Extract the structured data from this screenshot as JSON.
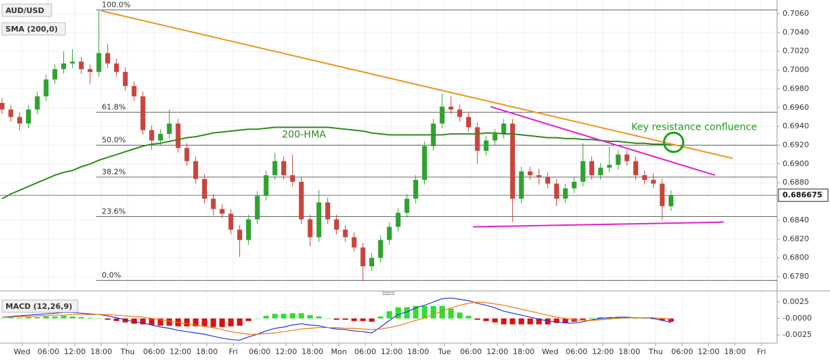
{
  "chart_data": {
    "type": "candlestick",
    "symbol": "AUD/USD",
    "indicator_label": "SMA (200,0)",
    "xlim": [
      -0.234,
      88.05
    ],
    "ylim": [
      0.67676,
      0.70746
    ],
    "grid": true,
    "yticks": [
      {
        "value": 0.706,
        "label": "0.7060"
      },
      {
        "value": 0.704,
        "label": "0.7040"
      },
      {
        "value": 0.702,
        "label": "0.7020"
      },
      {
        "value": 0.7,
        "label": "0.7000"
      },
      {
        "value": 0.698,
        "label": "0.6980"
      },
      {
        "value": 0.696,
        "label": "0.6960"
      },
      {
        "value": 0.694,
        "label": "0.6940"
      },
      {
        "value": 0.692,
        "label": "0.6920"
      },
      {
        "value": 0.69,
        "label": "0.6900"
      },
      {
        "value": 0.688,
        "label": "0.6880"
      },
      {
        "value": 0.684,
        "label": "0.6840"
      },
      {
        "value": 0.682,
        "label": "0.6820"
      },
      {
        "value": 0.68,
        "label": "0.6800"
      },
      {
        "value": 0.678,
        "label": "0.6780"
      }
    ],
    "last_price": 0.686675,
    "x_labels": [
      "Wed",
      "06:00",
      "12:00",
      "18:00",
      "Thu",
      "06:00",
      "12:00",
      "18:00",
      "Fri",
      "06:00",
      "12:00",
      "18:00",
      "Mon",
      "06:00",
      "12:00",
      "18:00",
      "Tue",
      "06:00",
      "12:00",
      "18:00",
      "Wed",
      "06:00",
      "12:00",
      "18:00",
      "Thu",
      "06:00",
      "12:00",
      "18:00",
      "Fri"
    ],
    "up_color": "#2ea32e",
    "down_color": "#c8453c",
    "candles": {
      "open": [
        0.6965,
        0.6958,
        0.695,
        0.6943,
        0.6958,
        0.6972,
        0.699,
        0.7001,
        0.7007,
        0.7009,
        0.7001,
        0.6998,
        0.7018,
        0.7007,
        0.6998,
        0.6983,
        0.6972,
        0.6936,
        0.6925,
        0.6932,
        0.6943,
        0.6917,
        0.6903,
        0.6884,
        0.6863,
        0.6852,
        0.6847,
        0.683,
        0.6819,
        0.6841,
        0.6866,
        0.6888,
        0.6903,
        0.6888,
        0.6881,
        0.6841,
        0.6822,
        0.6859,
        0.6841,
        0.683,
        0.6822,
        0.6811,
        0.6791,
        0.68,
        0.6819,
        0.6833,
        0.6848,
        0.6863,
        0.6883,
        0.6919,
        0.6943,
        0.6961,
        0.6958,
        0.695,
        0.6939,
        0.6914,
        0.6925,
        0.6932,
        0.6943,
        0.6863,
        0.6892,
        0.6888,
        0.6886,
        0.6879,
        0.6863,
        0.6874,
        0.6881,
        0.6903,
        0.6888,
        0.6896,
        0.6899,
        0.691,
        0.6903,
        0.6888,
        0.6883,
        0.6879,
        0.6855
      ],
      "high": [
        0.697,
        0.6963,
        0.6955,
        0.6963,
        0.6977,
        0.6995,
        0.7006,
        0.702,
        0.7022,
        0.7014,
        0.7006,
        0.7064,
        0.7028,
        0.7012,
        0.7003,
        0.6988,
        0.6977,
        0.6941,
        0.6937,
        0.6958,
        0.6948,
        0.6922,
        0.6908,
        0.6889,
        0.6868,
        0.6857,
        0.6852,
        0.6835,
        0.6846,
        0.6871,
        0.6893,
        0.6912,
        0.6908,
        0.691,
        0.6886,
        0.6846,
        0.6872,
        0.6864,
        0.6846,
        0.6835,
        0.6827,
        0.6816,
        0.6805,
        0.6824,
        0.6838,
        0.6853,
        0.6868,
        0.6888,
        0.6924,
        0.6948,
        0.6975,
        0.6972,
        0.6963,
        0.6955,
        0.6944,
        0.693,
        0.6937,
        0.6948,
        0.6948,
        0.6897,
        0.6897,
        0.6895,
        0.6891,
        0.6884,
        0.6879,
        0.6886,
        0.6922,
        0.6908,
        0.6901,
        0.6918,
        0.6915,
        0.6915,
        0.6908,
        0.6893,
        0.689,
        0.6884,
        0.6872
      ],
      "low": [
        0.6953,
        0.6945,
        0.6936,
        0.6938,
        0.6953,
        0.6967,
        0.6985,
        0.6996,
        0.7002,
        0.6996,
        0.6985,
        0.6993,
        0.7002,
        0.6993,
        0.6978,
        0.6967,
        0.6931,
        0.6915,
        0.692,
        0.6927,
        0.6912,
        0.6898,
        0.6879,
        0.6858,
        0.6845,
        0.6842,
        0.6825,
        0.6801,
        0.6814,
        0.6836,
        0.6861,
        0.6883,
        0.6883,
        0.6876,
        0.6836,
        0.6812,
        0.6817,
        0.6836,
        0.6825,
        0.6817,
        0.6806,
        0.6775,
        0.6786,
        0.6795,
        0.6814,
        0.6828,
        0.6843,
        0.6858,
        0.6878,
        0.6914,
        0.6938,
        0.6953,
        0.6945,
        0.6934,
        0.69,
        0.6909,
        0.692,
        0.6927,
        0.6838,
        0.6858,
        0.6883,
        0.6878,
        0.6874,
        0.6855,
        0.6858,
        0.6869,
        0.6876,
        0.6883,
        0.6883,
        0.6891,
        0.6894,
        0.6898,
        0.6883,
        0.6878,
        0.6874,
        0.684,
        0.685
      ],
      "close": [
        0.6958,
        0.695,
        0.6943,
        0.6958,
        0.6972,
        0.699,
        0.7001,
        0.7007,
        0.7009,
        0.7001,
        0.6998,
        0.7018,
        0.7007,
        0.6998,
        0.6983,
        0.6972,
        0.6936,
        0.6925,
        0.6932,
        0.6943,
        0.6917,
        0.6903,
        0.6884,
        0.6863,
        0.6852,
        0.6847,
        0.683,
        0.6819,
        0.6841,
        0.6866,
        0.6888,
        0.6903,
        0.6888,
        0.6881,
        0.6841,
        0.6822,
        0.6859,
        0.6841,
        0.683,
        0.6822,
        0.6811,
        0.6791,
        0.68,
        0.6819,
        0.6833,
        0.6848,
        0.6863,
        0.6883,
        0.6919,
        0.6943,
        0.6961,
        0.6958,
        0.695,
        0.6939,
        0.6914,
        0.6925,
        0.6932,
        0.6943,
        0.6863,
        0.6892,
        0.6888,
        0.6886,
        0.6879,
        0.6863,
        0.6874,
        0.6881,
        0.6903,
        0.6888,
        0.6896,
        0.6899,
        0.691,
        0.6903,
        0.6888,
        0.6883,
        0.6879,
        0.6855,
        0.6867
      ]
    },
    "sma": {
      "color": "#2f8a1f",
      "values": [
        0.6863,
        0.6868,
        0.6872,
        0.6876,
        0.688,
        0.6884,
        0.6888,
        0.6891,
        0.6893,
        0.6897,
        0.69,
        0.6904,
        0.6907,
        0.691,
        0.6913,
        0.6916,
        0.6919,
        0.6921,
        0.6922,
        0.6924,
        0.6926,
        0.6928,
        0.6929,
        0.6931,
        0.6933,
        0.6934,
        0.6935,
        0.6936,
        0.6937,
        0.6937,
        0.6938,
        0.6939,
        0.6939,
        0.6939,
        0.6939,
        0.6939,
        0.6939,
        0.6939,
        0.6938,
        0.6937,
        0.6936,
        0.6935,
        0.6933,
        0.6932,
        0.6931,
        0.6931,
        0.6931,
        0.6931,
        0.6931,
        0.6931,
        0.6931,
        0.6932,
        0.6932,
        0.6932,
        0.6932,
        0.6933,
        0.6933,
        0.6932,
        0.6932,
        0.6931,
        0.693,
        0.6929,
        0.6928,
        0.6928,
        0.6927,
        0.6927,
        0.6926,
        0.6926,
        0.6925,
        0.6924,
        0.6924,
        0.6923,
        0.6922,
        0.6922,
        0.6921,
        0.6921,
        0.692
      ]
    },
    "fib_levels": [
      {
        "label": "100.0%",
        "value": 0.7064
      },
      {
        "label": "61.8%",
        "value": 0.6955
      },
      {
        "label": "50.0%",
        "value": 0.692
      },
      {
        "label": "38.2%",
        "value": 0.6886
      },
      {
        "label": "23.6%",
        "value": 0.6844
      },
      {
        "label": "0.0%",
        "value": 0.6776
      }
    ],
    "trendlines": [
      {
        "color": "#f0921a",
        "x": [
          11.3,
          83
        ],
        "y": [
          0.7063,
          0.6906
        ]
      },
      {
        "color": "#e020d0",
        "x": [
          55.5,
          81
        ],
        "y": [
          0.6961,
          0.6888
        ]
      },
      {
        "color": "#e020d0",
        "x": [
          53.5,
          82
        ],
        "y": [
          0.6833,
          0.6838
        ]
      }
    ],
    "annotations": [
      {
        "text": "200-HMA",
        "x": 31.8,
        "y": 0.6931,
        "color": "#2f8a1f"
      },
      {
        "text": "Key resistance confluence",
        "x": 71.5,
        "y": 0.6939,
        "color": "#17a317"
      }
    ],
    "highlight": {
      "x": 76.3,
      "y": 0.6923,
      "color": "#17a317"
    },
    "macd": {
      "label": "MACD (12,26,9)",
      "ylim": [
        -0.00354,
        0.00333
      ],
      "yticks": [
        {
          "value": 0.0025,
          "label": "0.0025"
        },
        {
          "value": 0,
          "label": "-0.0000"
        },
        {
          "value": -0.0025,
          "label": "-0.0025"
        }
      ],
      "macd_color": "#2233dd",
      "signal_color": "#ee7711",
      "up_color": "#33dd33",
      "down_color": "#dd1111",
      "macd": [
        0.0002,
        0.0003,
        0.0004,
        0.0005,
        0.0006,
        0.0007,
        0.0008,
        0.0009,
        0.0009,
        0.0008,
        0.0007,
        0.0006,
        0.0004,
        0.0001,
        -0.0002,
        -0.0005,
        -0.0007,
        -0.001,
        -0.0013,
        -0.0015,
        -0.0018,
        -0.002,
        -0.0022,
        -0.0024,
        -0.0027,
        -0.003,
        -0.0032,
        -0.0033,
        -0.0028,
        -0.0024,
        -0.0019,
        -0.0015,
        -0.0013,
        -0.001,
        -0.0008,
        -0.001,
        -0.0011,
        -0.0014,
        -0.0016,
        -0.0017,
        -0.0019,
        -0.002,
        -0.0022,
        -0.0013,
        -0.0003,
        0.0006,
        0.001,
        0.0016,
        0.002,
        0.0025,
        0.003,
        0.0031,
        0.0029,
        0.0027,
        0.0023,
        0.002,
        0.0016,
        0.0011,
        0.0008,
        0.0005,
        0.0002,
        -0.0001,
        -0.0004,
        -0.0005,
        -0.0007,
        -0.0007,
        -0.0005,
        -0.0002,
        0.0,
        0.0001,
        0.0002,
        0.0002,
        0.0001,
        0.0001,
        0.0,
        -0.0003,
        -0.0006
      ],
      "signal": [
        0.0002,
        0.0002,
        0.0003,
        0.0003,
        0.0004,
        0.0004,
        0.0005,
        0.0005,
        0.0006,
        0.0006,
        0.0006,
        0.0006,
        0.0006,
        0.0005,
        0.0004,
        0.0003,
        0.0002,
        0.0,
        -0.0002,
        -0.0004,
        -0.0006,
        -0.0008,
        -0.001,
        -0.0012,
        -0.0014,
        -0.0017,
        -0.002,
        -0.0022,
        -0.0024,
        -0.0024,
        -0.0023,
        -0.0022,
        -0.002,
        -0.0018,
        -0.0016,
        -0.0015,
        -0.0014,
        -0.0014,
        -0.0014,
        -0.0015,
        -0.0015,
        -0.0016,
        -0.0017,
        -0.0016,
        -0.0014,
        -0.0011,
        -0.0007,
        -0.0003,
        0.0001,
        0.0006,
        0.0011,
        0.0016,
        0.002,
        0.0023,
        0.0025,
        0.0024,
        0.0022,
        0.002,
        0.0017,
        0.0014,
        0.0011,
        0.0008,
        0.0005,
        0.0002,
        0.0,
        -0.0002,
        -0.0003,
        -0.0003,
        -0.0002,
        -0.0001,
        0.0,
        0.0001,
        0.0001,
        0.0001,
        0.0001,
        0.0,
        -0.0001
      ],
      "histogram": [
        0.0,
        0.0001,
        0.0001,
        0.0002,
        0.0002,
        0.0003,
        0.0003,
        0.0004,
        0.0003,
        0.0002,
        0.0001,
        0.0,
        -0.0002,
        -0.0004,
        -0.0006,
        -0.0008,
        -0.0009,
        -0.001,
        -0.0011,
        -0.0011,
        -0.0012,
        -0.0012,
        -0.0012,
        -0.0012,
        -0.0013,
        -0.0013,
        -0.0012,
        -0.0011,
        -0.0004,
        0.0,
        0.0004,
        0.0007,
        0.0007,
        0.0008,
        0.0008,
        0.0005,
        0.0003,
        0.0,
        -0.0002,
        -0.0002,
        -0.0004,
        -0.0004,
        -0.0005,
        0.0003,
        0.0011,
        0.0017,
        0.0017,
        0.0019,
        0.0019,
        0.0019,
        0.0019,
        0.0015,
        0.0009,
        0.0004,
        -0.0002,
        -0.0004,
        -0.0006,
        -0.0009,
        -0.0009,
        -0.0009,
        -0.0009,
        -0.0009,
        -0.0009,
        -0.0007,
        -0.0007,
        -0.0005,
        -0.0002,
        0.0001,
        0.0002,
        0.0002,
        0.0002,
        0.0001,
        0.0,
        0.0,
        -0.0001,
        -0.0003,
        -0.0005
      ]
    }
  }
}
